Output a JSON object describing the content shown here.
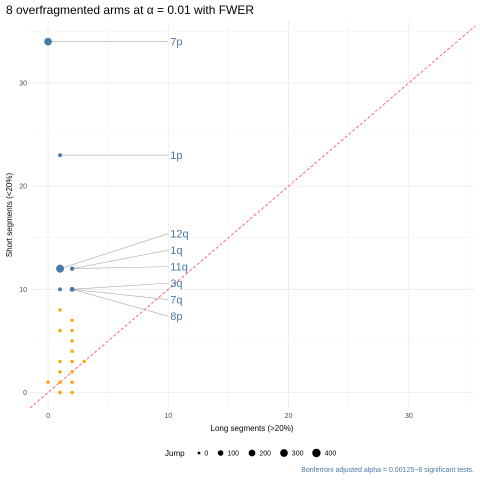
{
  "chart_data": {
    "type": "scatter",
    "title": "8 overfragmented arms at α = 0.01 with FWER",
    "xlabel": "Long segments (>20%)",
    "ylabel": "Short segments (<20%)",
    "xlim": [
      -1.5,
      35.5
    ],
    "ylim": [
      -1.5,
      36
    ],
    "x_ticks": [
      0,
      10,
      20,
      30
    ],
    "y_ticks": [
      0,
      10,
      20,
      30
    ],
    "grid": true,
    "reference_line": {
      "type": "identity",
      "color": "#ff4d4d",
      "style": "dashed"
    },
    "colors": {
      "significant": "#4a7aa8",
      "other": "#ffa500",
      "leader": "#aaaaaa",
      "label": "#4a7aa8"
    },
    "significant_points": [
      {
        "x": 0,
        "y": 34,
        "jump": 300
      },
      {
        "x": 1,
        "y": 23,
        "jump": 15
      },
      {
        "x": 1,
        "y": 12,
        "jump": 350
      },
      {
        "x": 2,
        "y": 12,
        "jump": 30
      },
      {
        "x": 1,
        "y": 10,
        "jump": 15
      },
      {
        "x": 2,
        "y": 10,
        "jump": 60
      }
    ],
    "other_points": [
      {
        "x": 1,
        "y": 8
      },
      {
        "x": 1,
        "y": 6
      },
      {
        "x": 1,
        "y": 3
      },
      {
        "x": 1,
        "y": 2
      },
      {
        "x": 1,
        "y": 1
      },
      {
        "x": 1,
        "y": 0
      },
      {
        "x": 2,
        "y": 7
      },
      {
        "x": 2,
        "y": 6
      },
      {
        "x": 2,
        "y": 5
      },
      {
        "x": 2,
        "y": 4
      },
      {
        "x": 2,
        "y": 3
      },
      {
        "x": 2,
        "y": 2
      },
      {
        "x": 2,
        "y": 1
      },
      {
        "x": 2,
        "y": 0
      },
      {
        "x": 3,
        "y": 3
      },
      {
        "x": 0,
        "y": 1
      }
    ],
    "labels": [
      {
        "text": "7p",
        "x": 0,
        "y": 34,
        "label_x": 10,
        "label_y": 34
      },
      {
        "text": "1p",
        "x": 1,
        "y": 23,
        "label_x": 10,
        "label_y": 23
      },
      {
        "text": "12q",
        "x": 1,
        "y": 12,
        "label_x": 10,
        "label_y": 15.4
      },
      {
        "text": "1q",
        "x": 2,
        "y": 12,
        "label_x": 10,
        "label_y": 13.8
      },
      {
        "text": "11q",
        "x": 2,
        "y": 12,
        "label_x": 10,
        "label_y": 12.2
      },
      {
        "text": "3q",
        "x": 2,
        "y": 10,
        "label_x": 10,
        "label_y": 10.6
      },
      {
        "text": "7q",
        "x": 2,
        "y": 10,
        "label_x": 10,
        "label_y": 9
      },
      {
        "text": "8p",
        "x": 2,
        "y": 10,
        "label_x": 10,
        "label_y": 7.4
      }
    ],
    "legend": {
      "title": "Jump",
      "placement": "bottom",
      "entries": [
        {
          "label": "0",
          "value": 0
        },
        {
          "label": "100",
          "value": 100
        },
        {
          "label": "200",
          "value": 200
        },
        {
          "label": "300",
          "value": 300
        },
        {
          "label": "400",
          "value": 400
        }
      ]
    },
    "caption": "Bonferroni adjusted alpha = 0.00125~8 significant tests."
  }
}
